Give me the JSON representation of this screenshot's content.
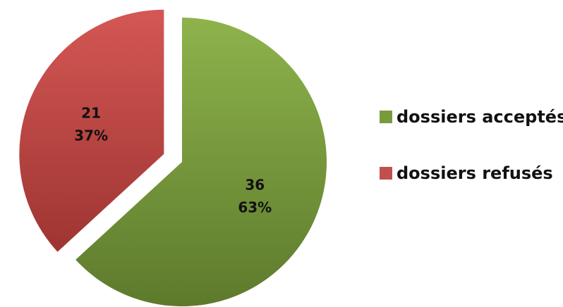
{
  "chart_data": {
    "type": "pie",
    "categories": [
      "dossiers acceptés",
      "dossiers refusés"
    ],
    "values": [
      36,
      21
    ],
    "percent_labels": [
      "63%",
      "37%"
    ],
    "colors": [
      "#7a9a3e",
      "#c0504d"
    ],
    "exploded": "dossiers refusés",
    "legend_position": "right"
  }
}
